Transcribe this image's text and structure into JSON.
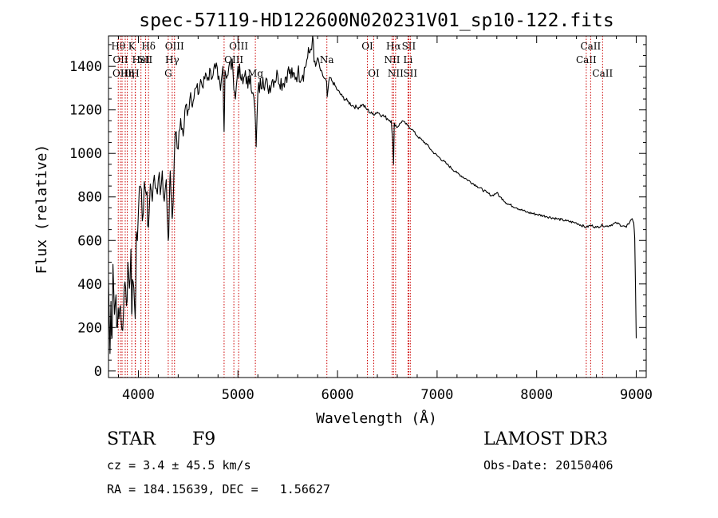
{
  "chart_data": {
    "type": "line",
    "title": "spec-57119-HD122600N020231V01_sp10-122.fits",
    "xlabel": "Wavelength (Å)",
    "ylabel": "Flux (relative)",
    "xlim": [
      3700,
      9100
    ],
    "ylim": [
      -30,
      1540
    ],
    "x_ticks": [
      4000,
      5000,
      6000,
      7000,
      8000,
      9000
    ],
    "y_ticks": [
      0,
      200,
      400,
      600,
      800,
      1000,
      1200,
      1400
    ],
    "grid": false,
    "series": [
      {
        "name": "flux",
        "x": [
          3700,
          3715,
          3725,
          3735,
          3745,
          3760,
          3775,
          3790,
          3805,
          3820,
          3835,
          3850,
          3865,
          3880,
          3895,
          3910,
          3925,
          3933,
          3940,
          3955,
          3968,
          3980,
          4000,
          4020,
          4040,
          4060,
          4080,
          4101,
          4120,
          4140,
          4160,
          4180,
          4200,
          4220,
          4240,
          4260,
          4280,
          4300,
          4310,
          4320,
          4335,
          4340,
          4360,
          4380,
          4400,
          4425,
          4450,
          4475,
          4500,
          4525,
          4550,
          4575,
          4600,
          4625,
          4650,
          4675,
          4700,
          4725,
          4750,
          4775,
          4800,
          4825,
          4850,
          4861,
          4870,
          4900,
          4925,
          4950,
          4975,
          5000,
          5025,
          5050,
          5075,
          5100,
          5125,
          5150,
          5170,
          5183,
          5200,
          5250,
          5300,
          5350,
          5400,
          5450,
          5500,
          5550,
          5600,
          5650,
          5700,
          5730,
          5750,
          5765,
          5780,
          5800,
          5830,
          5860,
          5890,
          5896,
          5920,
          5950,
          6000,
          6050,
          6100,
          6150,
          6200,
          6250,
          6300,
          6350,
          6400,
          6450,
          6500,
          6540,
          6555,
          6563,
          6570,
          6600,
          6650,
          6700,
          6750,
          6800,
          6850,
          6900,
          6950,
          7000,
          7100,
          7200,
          7300,
          7400,
          7500,
          7550,
          7600,
          7630,
          7660,
          7700,
          7800,
          7900,
          8000,
          8100,
          8200,
          8300,
          8400,
          8498,
          8542,
          8600,
          8662,
          8700,
          8800,
          8900,
          8940,
          8960,
          8975,
          8985,
          9000
        ],
        "y": [
          420,
          80,
          320,
          150,
          490,
          260,
          350,
          200,
          240,
          300,
          190,
          260,
          410,
          300,
          500,
          380,
          560,
          260,
          420,
          380,
          240,
          640,
          720,
          850,
          690,
          870,
          810,
          660,
          860,
          780,
          900,
          840,
          880,
          810,
          920,
          780,
          880,
          600,
          740,
          920,
          760,
          700,
          970,
          1100,
          1020,
          1160,
          1080,
          1220,
          1200,
          1280,
          1240,
          1300,
          1270,
          1340,
          1300,
          1370,
          1350,
          1380,
          1360,
          1390,
          1340,
          1290,
          1400,
          1100,
          1380,
          1360,
          1420,
          1380,
          1250,
          1400,
          1350,
          1320,
          1380,
          1300,
          1360,
          1280,
          1200,
          1030,
          1280,
          1350,
          1300,
          1340,
          1360,
          1320,
          1380,
          1350,
          1370,
          1360,
          1440,
          1480,
          1540,
          1420,
          1400,
          1440,
          1380,
          1350,
          1330,
          1260,
          1350,
          1330,
          1290,
          1260,
          1240,
          1220,
          1210,
          1225,
          1200,
          1180,
          1190,
          1175,
          1160,
          1150,
          1060,
          950,
          1140,
          1120,
          1150,
          1130,
          1110,
          1080,
          1060,
          1040,
          1010,
          990,
          950,
          910,
          880,
          850,
          820,
          805,
          820,
          800,
          790,
          770,
          750,
          730,
          720,
          710,
          700,
          690,
          680,
          660,
          670,
          660,
          670,
          665,
          680,
          660,
          690,
          700,
          680,
          610,
          150
        ]
      }
    ],
    "line_markers": [
      {
        "x": 3798,
        "label": "Hθ",
        "row": 1
      },
      {
        "x": 3820,
        "label": "OII",
        "row": 2
      },
      {
        "x": 3836,
        "label": "OIII",
        "row": 3
      },
      {
        "x": 3868,
        "label": "",
        "row": 1
      },
      {
        "x": 3889,
        "label": "Hη",
        "row": 3
      },
      {
        "x": 3934,
        "label": "K",
        "row": 1
      },
      {
        "x": 3968,
        "label": "H",
        "row": 3
      },
      {
        "x": 3970,
        "label": "",
        "row": 1
      },
      {
        "x": 4026,
        "label": "HeI",
        "row": 2
      },
      {
        "x": 4072,
        "label": "SII",
        "row": 2
      },
      {
        "x": 4102,
        "label": "Hδ",
        "row": 1
      },
      {
        "x": 4300,
        "label": "G",
        "row": 3
      },
      {
        "x": 4340,
        "label": "Hγ",
        "row": 2
      },
      {
        "x": 4363,
        "label": "OIII",
        "row": 1
      },
      {
        "x": 4861,
        "label": "",
        "row": 1
      },
      {
        "x": 4959,
        "label": "OIII",
        "row": 2
      },
      {
        "x": 5007,
        "label": "OIII",
        "row": 1
      },
      {
        "x": 5175,
        "label": "Mg",
        "row": 3
      },
      {
        "x": 5893,
        "label": "Na",
        "row": 2
      },
      {
        "x": 6300,
        "label": "OI",
        "row": 1
      },
      {
        "x": 6364,
        "label": "OI",
        "row": 3
      },
      {
        "x": 6548,
        "label": "NII",
        "row": 2
      },
      {
        "x": 6563,
        "label": "Hα",
        "row": 1
      },
      {
        "x": 6583,
        "label": "NII",
        "row": 3
      },
      {
        "x": 6708,
        "label": "Li",
        "row": 2
      },
      {
        "x": 6716,
        "label": "SII",
        "row": 1
      },
      {
        "x": 6731,
        "label": "SII",
        "row": 3
      },
      {
        "x": 8498,
        "label": "CaII",
        "row": 2
      },
      {
        "x": 8542,
        "label": "CaII",
        "row": 1
      },
      {
        "x": 8662,
        "label": "CaII",
        "row": 3
      }
    ]
  },
  "info": {
    "object_type": "STAR",
    "spectral_class": "F9",
    "survey": "LAMOST DR3",
    "cz": "cz = 3.4 ± 45.5 km/s",
    "obs_date": "Obs-Date: 20150406",
    "coords": "RA = 184.15639, DEC =   1.56627"
  },
  "colors": {
    "ink": "#000000",
    "marker": "#cc0000"
  }
}
